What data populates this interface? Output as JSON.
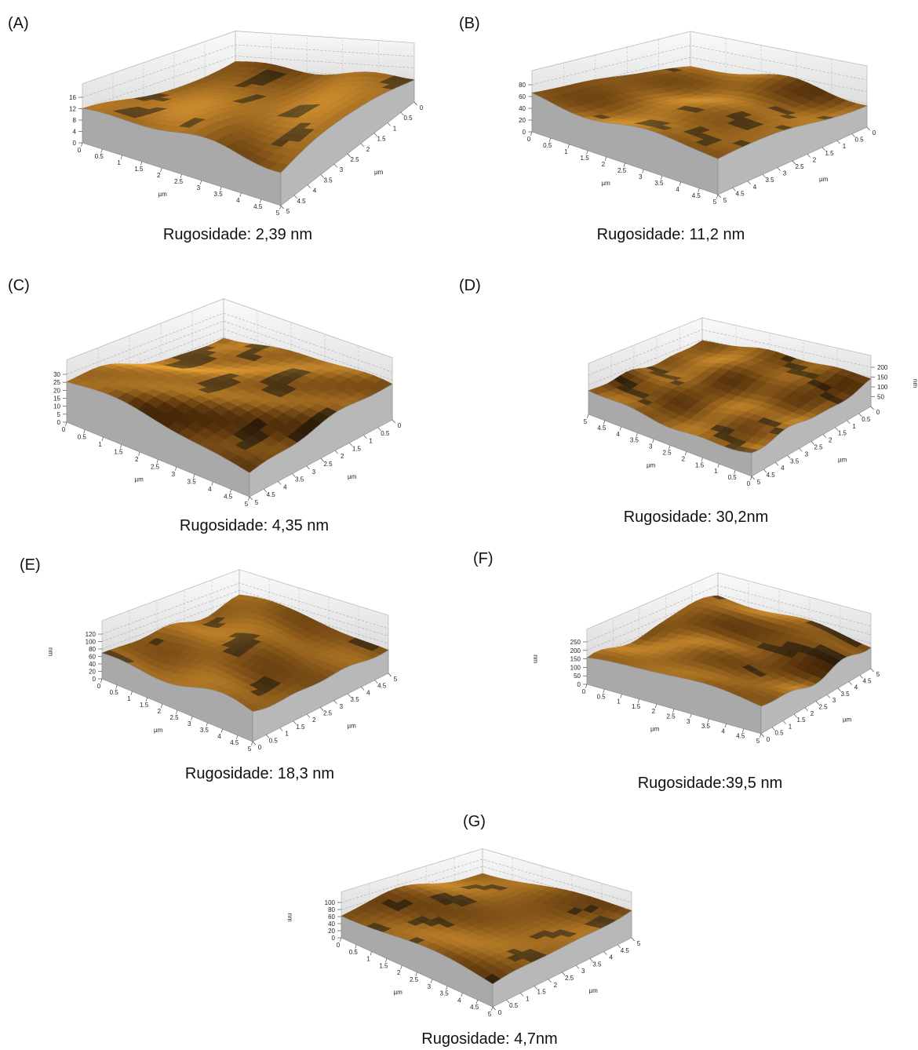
{
  "panels": [
    {
      "label": "(A)",
      "caption": "Rugosidade: 2,39 nm",
      "z_ticks": [
        0,
        4,
        8,
        12,
        16
      ],
      "x_ticks": [
        0,
        0.5,
        1,
        1.5,
        2,
        2.5,
        3,
        3.5,
        4,
        4.5,
        5
      ],
      "y_ticks": [
        5,
        4.5,
        4,
        3.5,
        3,
        2.5,
        2,
        1.5,
        1,
        0.5,
        0
      ],
      "axis_label": "µm"
    },
    {
      "label": "(B)",
      "caption": "Rugosidade: 11,2 nm",
      "z_ticks": [
        0,
        20,
        40,
        60,
        80
      ],
      "x_ticks": [
        0,
        0.5,
        1,
        1.5,
        2,
        2.5,
        3,
        3.5,
        4,
        4.5,
        5
      ],
      "y_ticks": [
        5,
        4.5,
        4,
        3.5,
        3,
        2.5,
        2,
        1.5,
        1,
        0.5,
        0
      ],
      "axis_label": "µm"
    },
    {
      "label": "(C)",
      "caption": "Rugosidade: 4,35 nm",
      "z_ticks": [
        0,
        5,
        10,
        15,
        20,
        25,
        30
      ],
      "x_ticks": [
        0,
        0.5,
        1,
        1.5,
        2,
        2.5,
        3,
        3.5,
        4,
        4.5,
        5
      ],
      "y_ticks": [
        5,
        4.5,
        4,
        3.5,
        3,
        2.5,
        2,
        1.5,
        1,
        0.5,
        0
      ],
      "axis_label": "µm"
    },
    {
      "label": "(D)",
      "caption": "Rugosidade: 30,2nm",
      "z_ticks": [
        50,
        100,
        150,
        200
      ],
      "x_ticks": [
        5,
        4.5,
        4,
        3.5,
        3,
        2.5,
        2,
        1.5,
        1,
        0.5,
        0
      ],
      "y_ticks": [
        5,
        4.5,
        4,
        3.5,
        3,
        2.5,
        2,
        1.5,
        1,
        0.5,
        0
      ],
      "axis_label": "µm",
      "z_label": "nm"
    },
    {
      "label": "(E)",
      "caption": "Rugosidade: 18,3 nm",
      "z_ticks": [
        0,
        20,
        40,
        60,
        80,
        100,
        120
      ],
      "x_ticks": [
        0,
        0.5,
        1,
        1.5,
        2,
        2.5,
        3,
        3.5,
        4,
        4.5,
        5
      ],
      "y_ticks": [
        0,
        0.5,
        1,
        1.5,
        2,
        2.5,
        3,
        3.5,
        4,
        4.5,
        5
      ],
      "axis_label": "µm",
      "z_label": "nm"
    },
    {
      "label": "(F)",
      "caption": "Rugosidade:39,5 nm",
      "z_ticks": [
        0,
        50,
        100,
        150,
        200,
        250
      ],
      "x_ticks": [
        0,
        0.5,
        1,
        1.5,
        2,
        2.5,
        3,
        3.5,
        4,
        4.5,
        5
      ],
      "y_ticks": [
        0,
        0.5,
        1,
        1.5,
        2,
        2.5,
        3,
        3.5,
        4,
        4.5,
        5
      ],
      "axis_label": "µm",
      "z_label": "nm"
    },
    {
      "label": "(G)",
      "caption": "Rugosidade: 4,7nm",
      "z_ticks": [
        0,
        20,
        40,
        60,
        80,
        100
      ],
      "x_ticks": [
        0,
        0.5,
        1,
        1.5,
        2,
        2.5,
        3,
        3.5,
        4,
        4.5,
        5
      ],
      "y_ticks": [
        0,
        0.5,
        1,
        1.5,
        2,
        2.5,
        3,
        3.5,
        4,
        4.5,
        5
      ],
      "axis_label": "µm",
      "z_label": "nm"
    }
  ]
}
